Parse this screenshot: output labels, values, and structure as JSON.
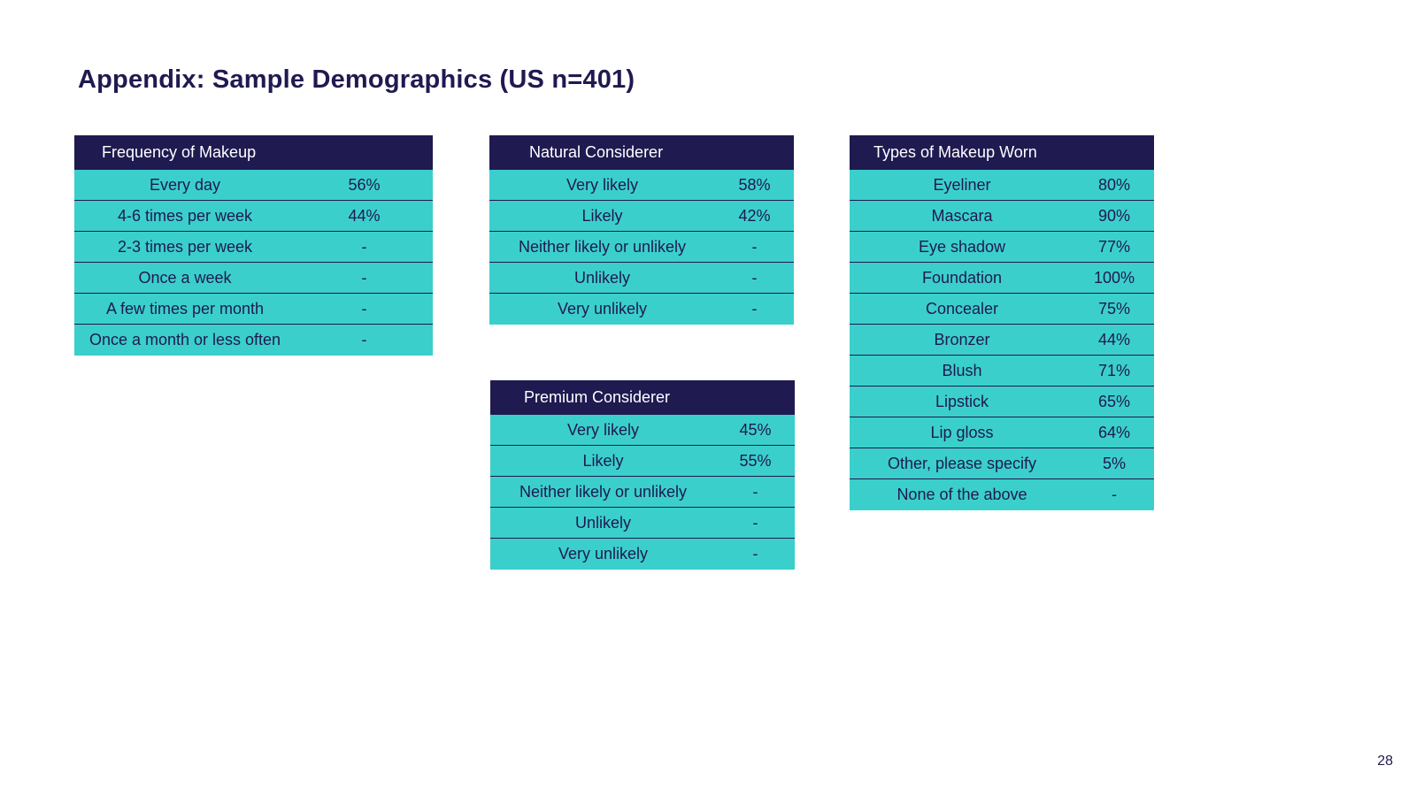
{
  "title": "Appendix: Sample Demographics (US n=401)",
  "page_number": "28",
  "tables": {
    "frequency": {
      "header": "Frequency of Makeup",
      "rows": [
        {
          "label": "Every day",
          "value": "56%"
        },
        {
          "label": "4-6 times per week",
          "value": "44%"
        },
        {
          "label": "2-3 times per week",
          "value": "-"
        },
        {
          "label": "Once a week",
          "value": "-"
        },
        {
          "label": "A few times per month",
          "value": "-"
        },
        {
          "label": "Once a month or less often",
          "value": "-"
        }
      ]
    },
    "natural": {
      "header": "Natural Considerer",
      "rows": [
        {
          "label": "Very likely",
          "value": "58%"
        },
        {
          "label": "Likely",
          "value": "42%"
        },
        {
          "label": "Neither likely or unlikely",
          "value": "-"
        },
        {
          "label": "Unlikely",
          "value": "-"
        },
        {
          "label": "Very unlikely",
          "value": "-"
        }
      ]
    },
    "premium": {
      "header": "Premium Considerer",
      "rows": [
        {
          "label": "Very likely",
          "value": "45%"
        },
        {
          "label": "Likely",
          "value": "55%"
        },
        {
          "label": "Neither likely or unlikely",
          "value": "-"
        },
        {
          "label": "Unlikely",
          "value": "-"
        },
        {
          "label": "Very unlikely",
          "value": "-"
        }
      ]
    },
    "types": {
      "header": "Types of Makeup Worn",
      "rows": [
        {
          "label": "Eyeliner",
          "value": "80%"
        },
        {
          "label": "Mascara",
          "value": "90%"
        },
        {
          "label": "Eye shadow",
          "value": "77%"
        },
        {
          "label": "Foundation",
          "value": "100%"
        },
        {
          "label": "Concealer",
          "value": "75%"
        },
        {
          "label": "Bronzer",
          "value": "44%"
        },
        {
          "label": "Blush",
          "value": "71%"
        },
        {
          "label": "Lipstick",
          "value": "65%"
        },
        {
          "label": "Lip gloss",
          "value": "64%"
        },
        {
          "label": "Other, please specify",
          "value": "5%"
        },
        {
          "label": "None of the above",
          "value": "-"
        }
      ]
    }
  },
  "colors": {
    "header_bg": "#1f1a50",
    "row_bg": "#3bcfcb",
    "text": "#1f1a50"
  }
}
